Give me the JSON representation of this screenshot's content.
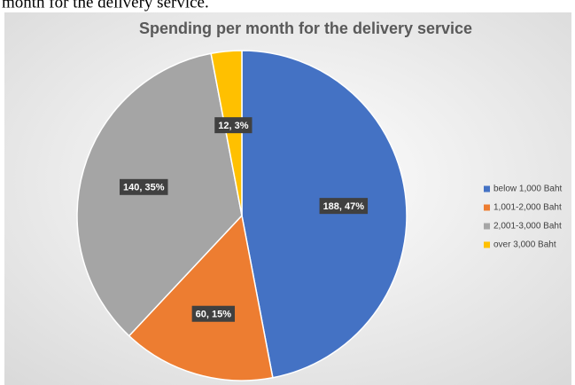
{
  "context_text": "month for the delivery service.",
  "chart_data": {
    "type": "pie",
    "title": "Spending per month for the delivery service",
    "categories": [
      "below 1,000 Baht",
      "1,001-2,000 Baht",
      "2,001-3,000 Baht",
      "over 3,000 Baht"
    ],
    "values": [
      188,
      60,
      140,
      12
    ],
    "value_labels": [
      "188, 47%",
      "60, 15%",
      "140, 35%",
      "12, 3%"
    ],
    "colors": [
      "#4472c4",
      "#ed7d31",
      "#a5a5a5",
      "#ffc000"
    ],
    "legend": "right"
  }
}
